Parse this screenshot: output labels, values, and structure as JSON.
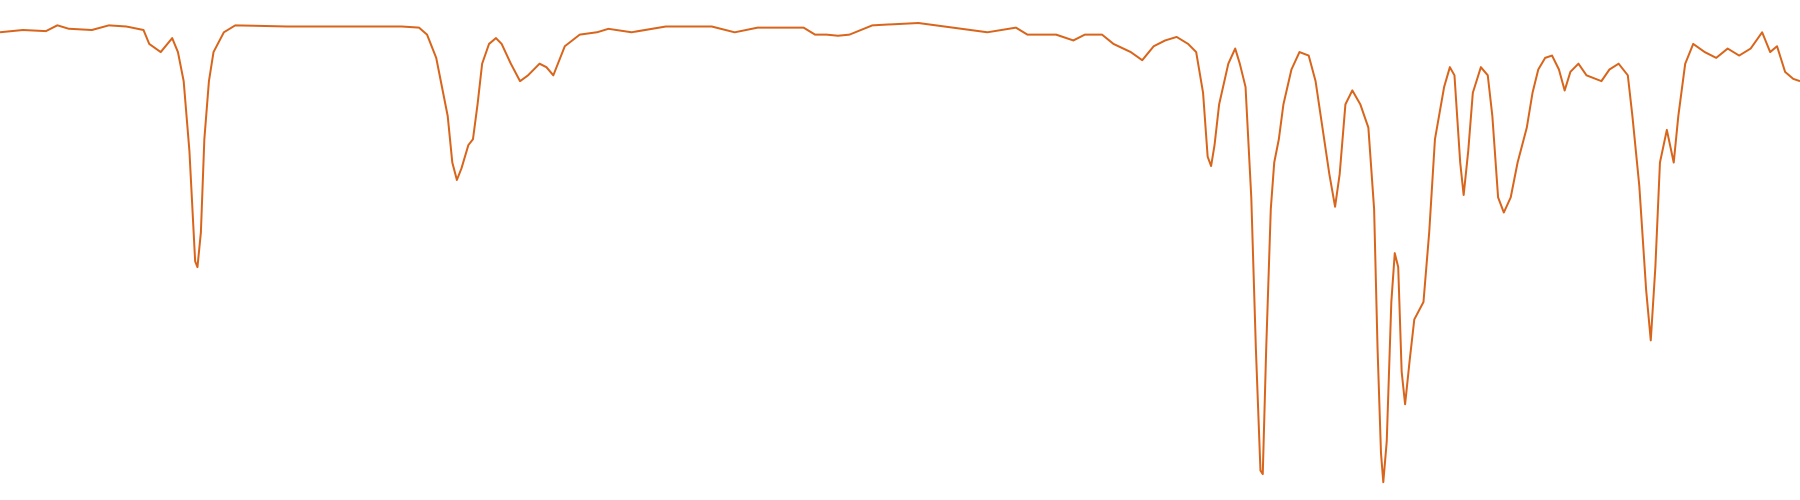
{
  "chart_data": {
    "type": "line",
    "color": "#d8651b",
    "xlim": [
      0,
      1568
    ],
    "ylim": [
      0,
      400
    ],
    "x": [
      0,
      20,
      40,
      50,
      60,
      80,
      95,
      110,
      125,
      130,
      140,
      150,
      155,
      160,
      165,
      170,
      172,
      175,
      178,
      182,
      186,
      195,
      205,
      250,
      300,
      350,
      365,
      372,
      380,
      390,
      394,
      398,
      402,
      408,
      412,
      416,
      420,
      426,
      432,
      437,
      445,
      453,
      460,
      470,
      476,
      482,
      486,
      492,
      505,
      520,
      530,
      550,
      580,
      620,
      640,
      660,
      700,
      710,
      720,
      730,
      740,
      760,
      800,
      830,
      860,
      885,
      895,
      910,
      920,
      935,
      945,
      960,
      970,
      985,
      995,
      1005,
      1015,
      1025,
      1035,
      1042,
      1048,
      1052,
      1055,
      1058,
      1062,
      1070,
      1076,
      1080,
      1085,
      1090,
      1094,
      1098,
      1100,
      1103,
      1107,
      1110,
      1114,
      1118,
      1125,
      1132,
      1140,
      1146,
      1152,
      1158,
      1163,
      1167,
      1172,
      1178,
      1185,
      1192,
      1197,
      1200,
      1203,
      1205,
      1208,
      1212,
      1215,
      1218,
      1221,
      1224,
      1228,
      1232,
      1240,
      1245,
      1250,
      1258,
      1263,
      1267,
      1272,
      1275,
      1279,
      1283,
      1290,
      1296,
      1300,
      1305,
      1310,
      1316,
      1322,
      1330,
      1335,
      1340,
      1346,
      1352,
      1358,
      1363,
      1368,
      1375,
      1382,
      1395,
      1402,
      1410,
      1418,
      1422,
      1428,
      1434,
      1438,
      1442,
      1446,
      1452,
      1458,
      1462,
      1468,
      1475,
      1485,
      1495,
      1505,
      1515,
      1525,
      1535,
      1542,
      1548,
      1555,
      1562,
      1568
    ],
    "values": [
      392,
      394,
      393,
      398,
      395,
      394,
      398,
      397,
      394,
      382,
      375,
      387,
      375,
      350,
      290,
      195,
      190,
      220,
      300,
      350,
      375,
      392,
      398,
      397,
      397,
      397,
      396,
      390,
      370,
      320,
      280,
      265,
      275,
      295,
      300,
      330,
      365,
      382,
      387,
      382,
      365,
      350,
      355,
      365,
      362,
      355,
      365,
      380,
      390,
      392,
      395,
      392,
      397,
      397,
      392,
      396,
      396,
      390,
      390,
      389,
      390,
      398,
      400,
      396,
      392,
      396,
      390,
      390,
      390,
      385,
      390,
      390,
      382,
      375,
      368,
      380,
      385,
      388,
      382,
      375,
      340,
      285,
      277,
      295,
      330,
      365,
      378,
      365,
      345,
      250,
      120,
      15,
      12,
      120,
      240,
      280,
      300,
      330,
      360,
      375,
      372,
      350,
      310,
      270,
      242,
      270,
      330,
      342,
      330,
      310,
      240,
      120,
      30,
      5,
      40,
      160,
      202,
      190,
      100,
      72,
      110,
      145,
      160,
      220,
      300,
      345,
      362,
      355,
      280,
      252,
      290,
      340,
      362,
      355,
      320,
      250,
      237,
      250,
      280,
      310,
      340,
      360,
      370,
      372,
      360,
      342,
      358,
      365,
      355,
      350,
      360,
      365,
      355,
      320,
      260,
      170,
      127,
      190,
      280,
      308,
      280,
      320,
      365,
      382,
      375,
      370,
      378,
      372,
      378,
      392,
      375,
      380,
      358,
      352,
      350
    ]
  }
}
